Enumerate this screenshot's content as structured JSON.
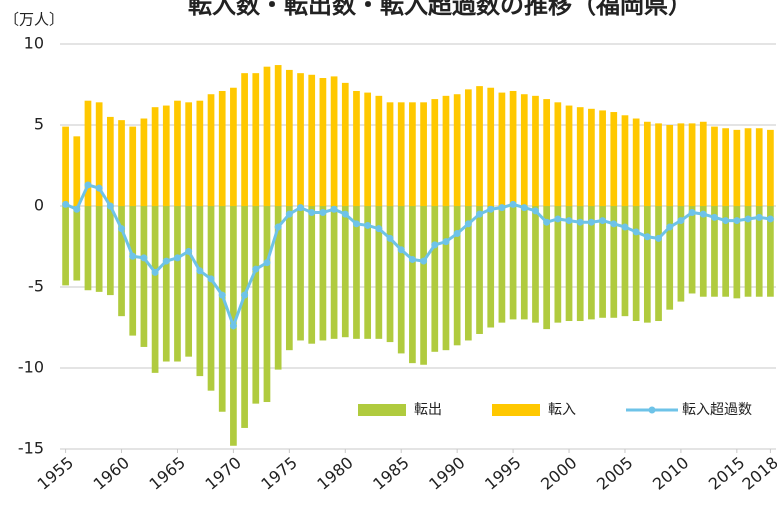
{
  "chart_data": {
    "type": "bar-line",
    "title": "転入数・転出数・転入超過数の推移（福岡県）",
    "y_unit": "〔万人〕",
    "x": [
      1955,
      1956,
      1957,
      1958,
      1959,
      1960,
      1961,
      1962,
      1963,
      1964,
      1965,
      1966,
      1967,
      1968,
      1969,
      1970,
      1971,
      1972,
      1973,
      1974,
      1975,
      1976,
      1977,
      1978,
      1979,
      1980,
      1981,
      1982,
      1983,
      1984,
      1985,
      1986,
      1987,
      1988,
      1989,
      1990,
      1991,
      1992,
      1993,
      1994,
      1995,
      1996,
      1997,
      1998,
      1999,
      2000,
      2001,
      2002,
      2003,
      2004,
      2005,
      2006,
      2007,
      2008,
      2009,
      2010,
      2011,
      2012,
      2013,
      2014,
      2015,
      2016,
      2017,
      2018
    ],
    "xlim": [
      1954.5,
      2018.5
    ],
    "xticks": [
      1955,
      1960,
      1965,
      1970,
      1975,
      1980,
      1985,
      1990,
      1995,
      2000,
      2005,
      2010,
      2015,
      2018
    ],
    "ylim": [
      -15,
      10
    ],
    "yticks": [
      -15,
      -10,
      -5,
      0,
      5,
      10
    ],
    "grid": true,
    "series": [
      {
        "name": "転出",
        "kind": "bar",
        "color": "#b0cb3e",
        "values": [
          -4.9,
          -4.6,
          -5.2,
          -5.3,
          -5.5,
          -6.8,
          -8.0,
          -8.7,
          -10.3,
          -9.6,
          -9.6,
          -9.3,
          -10.5,
          -11.4,
          -12.7,
          -14.8,
          -13.7,
          -12.2,
          -12.1,
          -10.1,
          -8.9,
          -8.3,
          -8.5,
          -8.3,
          -8.2,
          -8.1,
          -8.2,
          -8.2,
          -8.2,
          -8.4,
          -9.1,
          -9.7,
          -9.8,
          -9.0,
          -8.9,
          -8.6,
          -8.3,
          -7.9,
          -7.5,
          -7.2,
          -7.0,
          -7.0,
          -7.2,
          -7.6,
          -7.2,
          -7.1,
          -7.1,
          -7.0,
          -6.9,
          -6.9,
          -6.8,
          -7.1,
          -7.2,
          -7.1,
          -6.4,
          -5.9,
          -5.4,
          -5.6,
          -5.6,
          -5.6,
          -5.7,
          -5.6,
          -5.6,
          -5.6
        ]
      },
      {
        "name": "転入",
        "kind": "bar",
        "color": "#ffc800",
        "values": [
          4.9,
          4.3,
          6.5,
          6.4,
          5.5,
          5.3,
          4.9,
          5.4,
          6.1,
          6.2,
          6.5,
          6.4,
          6.5,
          6.9,
          7.1,
          7.3,
          8.2,
          8.2,
          8.6,
          8.7,
          8.4,
          8.2,
          8.1,
          7.9,
          8.0,
          7.6,
          7.1,
          7.0,
          6.8,
          6.4,
          6.4,
          6.4,
          6.4,
          6.6,
          6.8,
          6.9,
          7.2,
          7.4,
          7.3,
          7.0,
          7.1,
          6.9,
          6.8,
          6.6,
          6.4,
          6.2,
          6.1,
          6.0,
          5.9,
          5.8,
          5.6,
          5.4,
          5.2,
          5.1,
          5.0,
          5.1,
          5.1,
          5.2,
          4.9,
          4.8,
          4.7,
          4.8,
          4.8,
          4.7
        ]
      },
      {
        "name": "転入超過数",
        "kind": "line",
        "color": "#6ec3e8",
        "values": [
          0.1,
          -0.2,
          1.3,
          1.1,
          0.0,
          -1.4,
          -3.1,
          -3.2,
          -4.1,
          -3.4,
          -3.2,
          -2.8,
          -4.0,
          -4.5,
          -5.5,
          -7.4,
          -5.5,
          -3.9,
          -3.5,
          -1.3,
          -0.5,
          -0.1,
          -0.4,
          -0.4,
          -0.2,
          -0.5,
          -1.1,
          -1.2,
          -1.4,
          -2.0,
          -2.7,
          -3.3,
          -3.4,
          -2.4,
          -2.2,
          -1.7,
          -1.1,
          -0.5,
          -0.2,
          -0.1,
          0.1,
          -0.1,
          -0.3,
          -1.0,
          -0.8,
          -0.9,
          -1.0,
          -1.0,
          -0.9,
          -1.1,
          -1.3,
          -1.6,
          -1.9,
          -2.0,
          -1.3,
          -0.9,
          -0.4,
          -0.5,
          -0.7,
          -0.9,
          -0.9,
          -0.8,
          -0.7,
          -0.8
        ]
      }
    ]
  }
}
